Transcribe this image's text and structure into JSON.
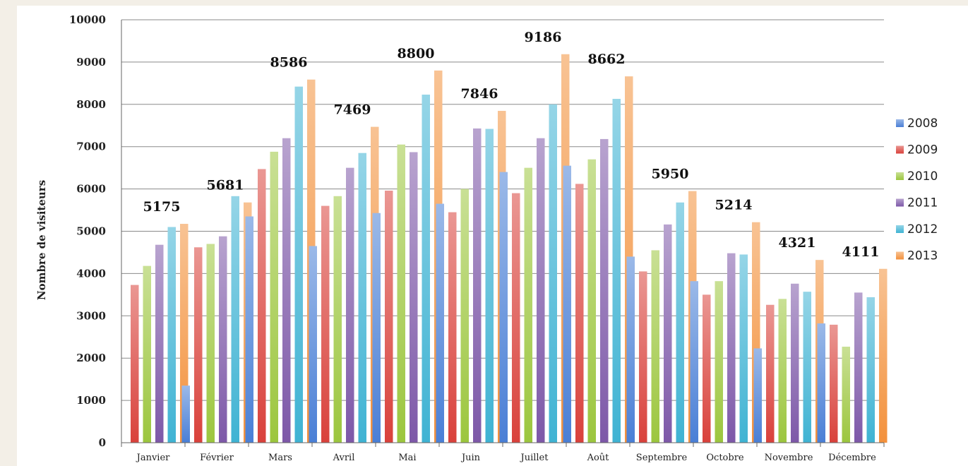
{
  "chart_data": {
    "type": "bar",
    "title": "",
    "xlabel": "",
    "ylabel": "Nombre de visiteurs",
    "ylim": [
      0,
      10000
    ],
    "yticks": [
      0,
      1000,
      2000,
      3000,
      4000,
      5000,
      6000,
      7000,
      8000,
      9000,
      10000
    ],
    "grid": true,
    "legend_position": "right",
    "categories": [
      "Janvier",
      "Février",
      "Mars",
      "Avril",
      "Mai",
      "Juin",
      "Juillet",
      "Août",
      "Septembre",
      "Octobre",
      "Novembre",
      "Décembre"
    ],
    "series": [
      {
        "name": "2008",
        "color": "#4a7fd6",
        "values": [
          0,
          1350,
          5350,
          4650,
          5430,
          5650,
          6400,
          6550,
          4400,
          3820,
          2230,
          2820
        ]
      },
      {
        "name": "2009",
        "color": "#d9413b",
        "values": [
          3730,
          4620,
          6470,
          5600,
          5960,
          5450,
          5900,
          6120,
          4050,
          3500,
          3260,
          2790
        ]
      },
      {
        "name": "2010",
        "color": "#9cc63e",
        "values": [
          4180,
          4700,
          6880,
          5830,
          7050,
          6000,
          6500,
          6700,
          4550,
          3820,
          3400,
          2270
        ]
      },
      {
        "name": "2011",
        "color": "#7d58a8",
        "values": [
          4680,
          4880,
          7200,
          6500,
          6870,
          7430,
          7200,
          7180,
          5160,
          4480,
          3760,
          3550
        ]
      },
      {
        "name": "2012",
        "color": "#3fb3d3",
        "values": [
          5100,
          5830,
          8420,
          6850,
          8230,
          7420,
          8000,
          8130,
          5680,
          4450,
          3570,
          3440
        ]
      },
      {
        "name": "2013",
        "color": "#f3913c",
        "values": [
          5175,
          5681,
          8586,
          7469,
          8800,
          7846,
          9186,
          8662,
          5950,
          5214,
          4321,
          4111
        ]
      }
    ],
    "data_labels": [
      "5175",
      "5681",
      "8586",
      "7469",
      "8800",
      "7846",
      "9186",
      "8662",
      "5950",
      "5214",
      "4321",
      "4111"
    ]
  }
}
